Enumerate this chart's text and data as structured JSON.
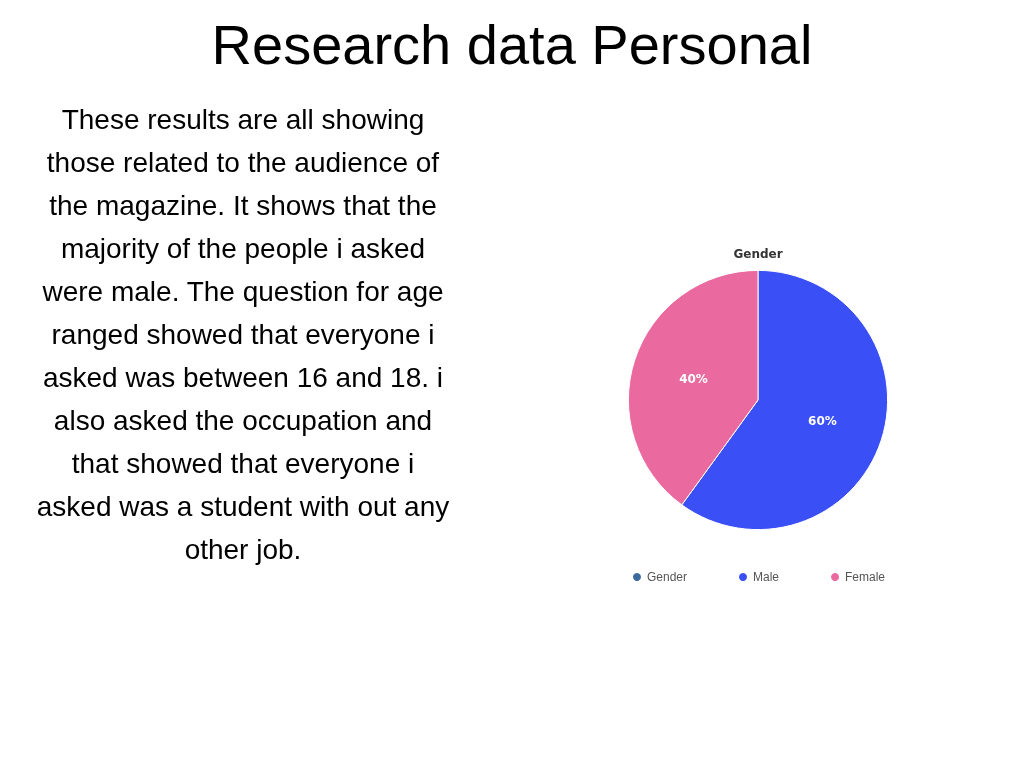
{
  "chart_data": {
    "type": "pie",
    "title": "Gender",
    "subtitle": "Research data Personal",
    "categories": [
      "Gender",
      "Male",
      "Female"
    ],
    "values": [
      0,
      60,
      40
    ],
    "colors": [
      "#3c6a9c",
      "#3a4ff5",
      "#ea6a9f"
    ],
    "value_labels": [
      null,
      "60%",
      "40%"
    ],
    "legend": "bottom",
    "annotations": [
      "These results are all showing those related to the audience of the magazine. It shows that the majority of the people i asked were male. The question for age ranged showed that everyone i asked was between 16 and 18. i also asked the occupation and that showed that everyone i asked was a student with out any other job."
    ]
  }
}
